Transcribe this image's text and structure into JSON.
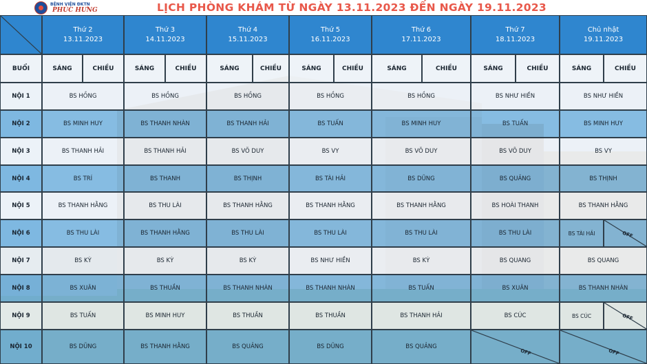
{
  "header": {
    "hospital_line1": "BỆNH VIỆN ĐKTN",
    "hospital_line2": "PHÚC HƯNG",
    "title": "LỊCH PHÒNG KHÁM TỪ NGÀY 13.11.2023 ĐẾN NGÀY 19.11.2023"
  },
  "days": [
    {
      "name": "Thứ 2",
      "date": "13.11.2023"
    },
    {
      "name": "Thứ 3",
      "date": "14.11.2023"
    },
    {
      "name": "Thứ 4",
      "date": "15.11.2023"
    },
    {
      "name": "Thứ 5",
      "date": "16.11.2023"
    },
    {
      "name": "Thứ 6",
      "date": "17.11.2023"
    },
    {
      "name": "Thứ 7",
      "date": "18.11.2023"
    },
    {
      "name": "Chủ nhật",
      "date": "19.11.2023"
    }
  ],
  "session_header": {
    "label": "BUỔI",
    "morning": "SÁNG",
    "afternoon": "CHIỀU"
  },
  "off_label": "OFF",
  "rows": [
    {
      "label": "NỘI 1",
      "doctors": [
        "BS HỒNG",
        "BS HỒNG",
        "BS HỒNG",
        "BS HỒNG",
        "BS HỒNG",
        "BS NHƯ HIỀN",
        "BS NHƯ HIỀN"
      ]
    },
    {
      "label": "NỘI 2",
      "doctors": [
        "BS MINH HUY",
        "BS THANH NHÀN",
        "BS THANH HẢI",
        "BS TUẤN",
        "BS MINH HUY",
        "BS TUẤN",
        "BS MINH HUY"
      ]
    },
    {
      "label": "NỘI 3",
      "doctors": [
        "BS THANH HẢI",
        "BS THANH HẢI",
        "BS VÕ DUY",
        "BS VY",
        "BS VÕ DUY",
        "BS VÕ DUY",
        "BS VY"
      ]
    },
    {
      "label": "NỘI 4",
      "doctors": [
        "BS TRÍ",
        "BS THANH",
        "BS THỊNH",
        "BS TÀI HẢI",
        "BS DŨNG",
        "BS QUẢNG",
        "BS THỊNH"
      ]
    },
    {
      "label": "NỘI 5",
      "doctors": [
        "BS THANH HẰNG",
        "BS THU LÀI",
        "BS THANH HẰNG",
        "BS THANH HẰNG",
        "BS THANH HẰNG",
        "BS HOÀI THANH",
        "BS THANH HẰNG"
      ]
    },
    {
      "label": "NỘI 6",
      "doctors": [
        "BS THU LÀI",
        "BS THANH HẰNG",
        "BS THU LÀI",
        "BS THU LÀI",
        "BS THU LÀI",
        "BS THU LÀI",
        "BS TÀI HẢI|OFF"
      ]
    },
    {
      "label": "NỘI 7",
      "doctors": [
        "BS KỲ",
        "BS KỲ",
        "BS KỲ",
        "BS NHƯ HIỀN",
        "BS KỲ",
        "BS QUANG",
        "BS QUANG"
      ]
    },
    {
      "label": "NỘI 8",
      "doctors": [
        "BS XUÂN",
        "BS THUẦN",
        "BS THANH NHÀN",
        "BS THANH NHÀN",
        "BS TUẤN",
        "BS XUÂN",
        "BS THANH NHÀN"
      ]
    },
    {
      "label": "NỘI 9",
      "doctors": [
        "BS TUẤN",
        "BS MINH HUY",
        "BS THUẦN",
        "BS THUẦN",
        "BS THANH HẢI",
        "BS CÚC",
        "BS CÚC|OFF"
      ]
    },
    {
      "label": "NỘI 10",
      "doctors": [
        "BS DŨNG",
        "BS THANH HẰNG",
        "BS QUẢNG",
        "BS DŨNG",
        "BS QUẢNG",
        "OFF",
        "OFF"
      ]
    }
  ],
  "colors": {
    "header_blue": "#2f86cf",
    "title_red": "#e8584a",
    "row_light": "#eef4fa",
    "row_blue": "#62aade"
  }
}
